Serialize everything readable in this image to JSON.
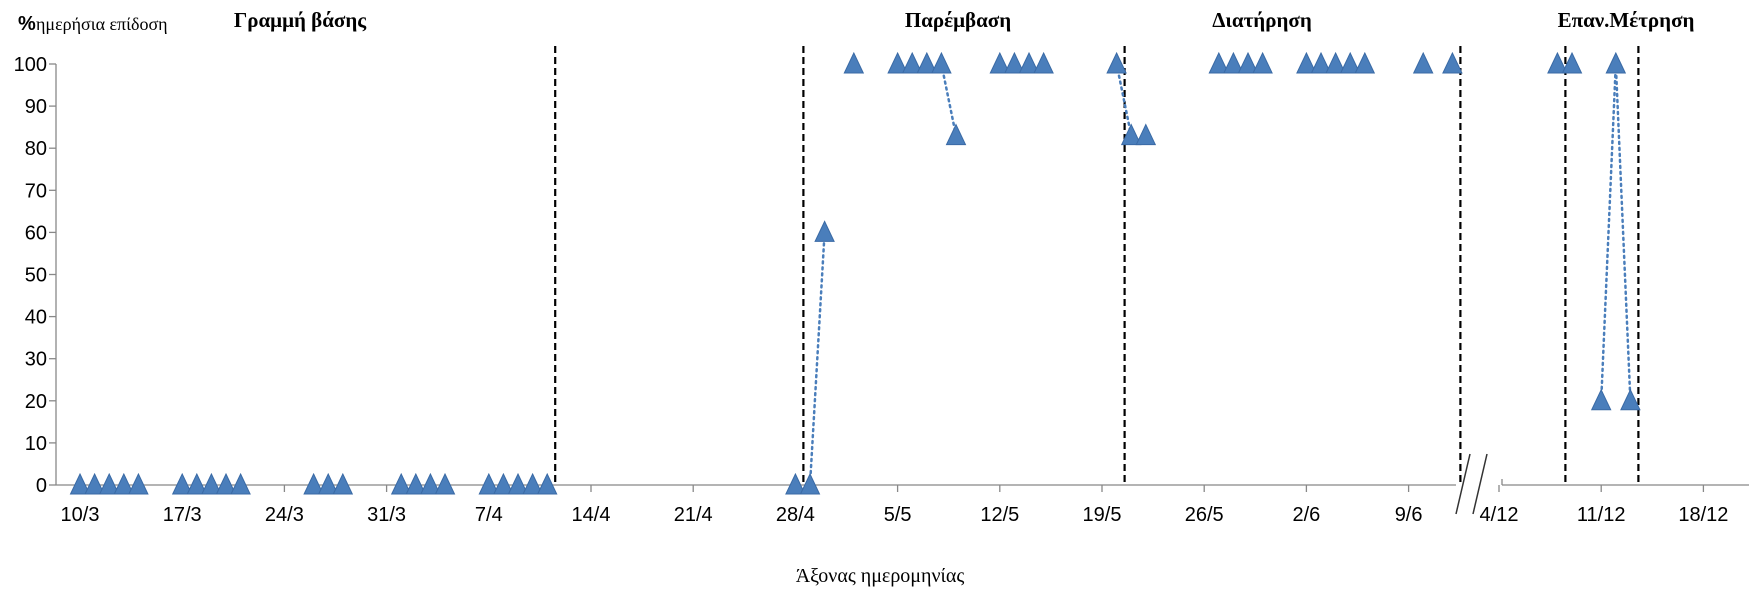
{
  "chart_data": {
    "type": "line",
    "ylabel_prefix": "%",
    "ylabel": "ημερήσια επίδοση",
    "xlabel": "Άξονας ημερομηνίας",
    "ylim": [
      0,
      100
    ],
    "yticks": [
      0,
      10,
      20,
      30,
      40,
      50,
      60,
      70,
      80,
      90,
      100
    ],
    "marker": "triangle",
    "line_style": "dotted",
    "color": "#4a7ebb",
    "grid": false,
    "segment1": {
      "xticks": [
        "10/3",
        "17/3",
        "24/3",
        "31/3",
        "7/4",
        "14/4",
        "21/4",
        "28/4",
        "5/5",
        "12/5",
        "19/5",
        "26/5",
        "2/6",
        "9/6"
      ],
      "phase_boundaries": [
        "11/4",
        "28/4",
        "20/5",
        "12/6"
      ]
    },
    "segment2": {
      "xticks": [
        "4/12",
        "11/12",
        "18/12"
      ],
      "phase_boundaries": [
        "8/12",
        "13/12"
      ]
    },
    "phases": [
      "Γραμμή βάσης",
      "Παρέμβαση",
      "Διατήρηση",
      "Επαν.Μέτρηση"
    ],
    "series": [
      {
        "points": [
          {
            "x": "10/3",
            "y": 0
          },
          {
            "x": "11/3",
            "y": 0
          },
          {
            "x": "12/3",
            "y": 0
          },
          {
            "x": "13/3",
            "y": 0
          },
          {
            "x": "14/3",
            "y": 0
          },
          {
            "x": "17/3",
            "y": 0
          },
          {
            "x": "18/3",
            "y": 0
          },
          {
            "x": "19/3",
            "y": 0
          },
          {
            "x": "20/3",
            "y": 0
          },
          {
            "x": "21/3",
            "y": 0
          },
          {
            "x": "26/3",
            "y": 0
          },
          {
            "x": "27/3",
            "y": 0
          },
          {
            "x": "28/3",
            "y": 0
          },
          {
            "x": "1/4",
            "y": 0
          },
          {
            "x": "2/4",
            "y": 0
          },
          {
            "x": "3/4",
            "y": 0
          },
          {
            "x": "4/4",
            "y": 0
          },
          {
            "x": "7/4",
            "y": 0
          },
          {
            "x": "8/4",
            "y": 0
          },
          {
            "x": "9/4",
            "y": 0
          },
          {
            "x": "10/4",
            "y": 0
          },
          {
            "x": "11/4",
            "y": 0
          },
          {
            "x": "28/4",
            "y": 0
          },
          {
            "x": "29/4",
            "y": 0
          },
          {
            "x": "30/4",
            "y": 60
          },
          {
            "x": "2/5",
            "y": 100
          },
          {
            "x": "5/5",
            "y": 100
          },
          {
            "x": "6/5",
            "y": 100
          },
          {
            "x": "7/5",
            "y": 100
          },
          {
            "x": "8/5",
            "y": 100
          },
          {
            "x": "9/5",
            "y": 83
          },
          {
            "x": "12/5",
            "y": 100
          },
          {
            "x": "13/5",
            "y": 100
          },
          {
            "x": "14/5",
            "y": 100
          },
          {
            "x": "15/5",
            "y": 100
          },
          {
            "x": "20/5",
            "y": 100
          },
          {
            "x": "21/5",
            "y": 83
          },
          {
            "x": "22/5",
            "y": 83
          },
          {
            "x": "27/5",
            "y": 100
          },
          {
            "x": "28/5",
            "y": 100
          },
          {
            "x": "29/5",
            "y": 100
          },
          {
            "x": "30/5",
            "y": 100
          },
          {
            "x": "2/6",
            "y": 100
          },
          {
            "x": "3/6",
            "y": 100
          },
          {
            "x": "4/6",
            "y": 100
          },
          {
            "x": "5/6",
            "y": 100
          },
          {
            "x": "6/6",
            "y": 100
          },
          {
            "x": "10/6",
            "y": 100
          },
          {
            "x": "12/6",
            "y": 100
          },
          {
            "x": "8/12",
            "y": 100
          },
          {
            "x": "9/12",
            "y": 100
          },
          {
            "x": "11/12",
            "y": 20
          },
          {
            "x": "12/12",
            "y": 100
          },
          {
            "x": "13/12",
            "y": 20
          }
        ]
      }
    ]
  }
}
